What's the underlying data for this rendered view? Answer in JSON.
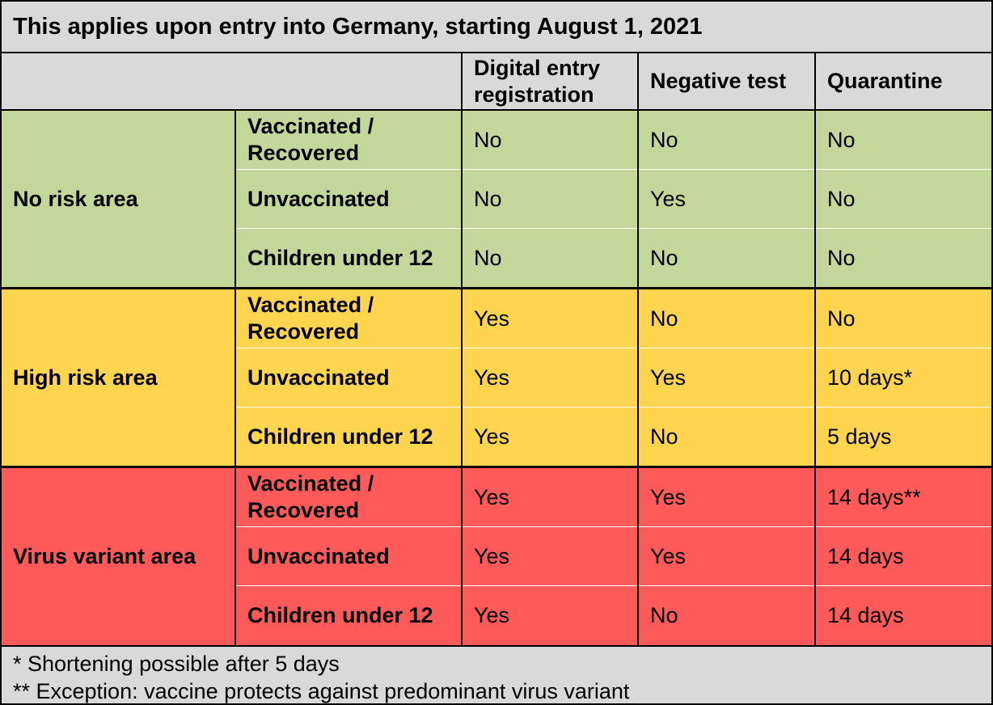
{
  "title": "This applies upon entry into Germany, starting August 1, 2021",
  "header": {
    "col1": "Digital entry registration",
    "col2": "Negative test",
    "col3": "Quarantine"
  },
  "colors": {
    "header_bg": "#d9d9d9",
    "no_risk": "#c4d79b",
    "high_risk": "#ffd54f",
    "virus_variant": "#ff5a5a"
  },
  "groups": [
    {
      "label": "No risk area",
      "rows": [
        {
          "category": "Vaccinated / Recovered",
          "digital_entry": "No",
          "negative_test": "No",
          "quarantine": "No"
        },
        {
          "category": "Unvaccinated",
          "digital_entry": "No",
          "negative_test": "Yes",
          "quarantine": "No"
        },
        {
          "category": "Children under 12",
          "digital_entry": "No",
          "negative_test": "No",
          "quarantine": "No"
        }
      ]
    },
    {
      "label": "High risk area",
      "rows": [
        {
          "category": "Vaccinated / Recovered",
          "digital_entry": "Yes",
          "negative_test": "No",
          "quarantine": "No"
        },
        {
          "category": "Unvaccinated",
          "digital_entry": "Yes",
          "negative_test": "Yes",
          "quarantine": "10 days*"
        },
        {
          "category": "Children under 12",
          "digital_entry": "Yes",
          "negative_test": "No",
          "quarantine": "5 days"
        }
      ]
    },
    {
      "label": "Virus variant area",
      "rows": [
        {
          "category": "Vaccinated / Recovered",
          "digital_entry": "Yes",
          "negative_test": "Yes",
          "quarantine": "14 days**"
        },
        {
          "category": "Unvaccinated",
          "digital_entry": "Yes",
          "negative_test": "Yes",
          "quarantine": "14 days"
        },
        {
          "category": "Children under 12",
          "digital_entry": "Yes",
          "negative_test": "No",
          "quarantine": "14 days"
        }
      ]
    }
  ],
  "footnotes": [
    "* Shortening possible after 5 days",
    "** Exception: vaccine protects against predominant virus variant"
  ]
}
